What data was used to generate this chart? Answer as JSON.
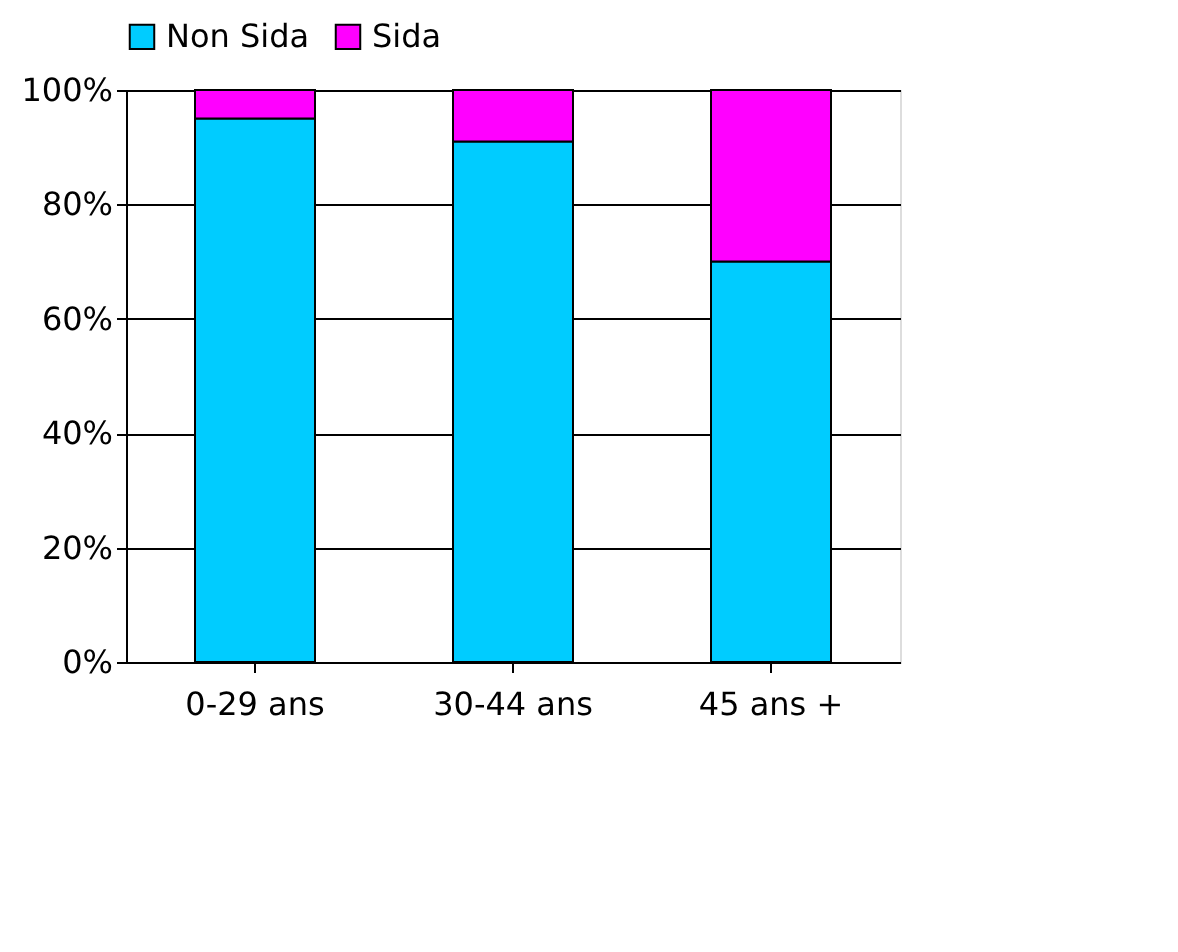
{
  "chart_data": {
    "type": "bar",
    "stacked": true,
    "categories": [
      "0-29 ans",
      "30-44 ans",
      "45 ans +"
    ],
    "series": [
      {
        "name": "Non Sida",
        "color": "#00ccff",
        "values": [
          95,
          91,
          70
        ]
      },
      {
        "name": "Sida",
        "color": "#ff00ff",
        "values": [
          5,
          9,
          30
        ]
      }
    ],
    "ylim": [
      0,
      100
    ],
    "yticks": [
      {
        "value": 0,
        "label": "0%"
      },
      {
        "value": 20,
        "label": "20%"
      },
      {
        "value": 40,
        "label": "40%"
      },
      {
        "value": 60,
        "label": "60%"
      },
      {
        "value": 80,
        "label": "80%"
      },
      {
        "value": 100,
        "label": "100%"
      }
    ],
    "grid": "y",
    "legend": "top"
  }
}
